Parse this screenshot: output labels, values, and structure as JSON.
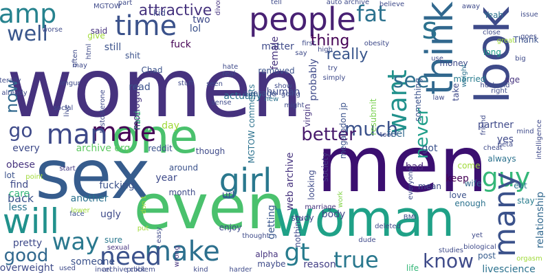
{
  "words": [
    {
      "text": "women",
      "color": "#46327e",
      "rot": 0
    },
    {
      "text": "men",
      "color": "#3b0f70",
      "rot": 0
    },
    {
      "text": "sex",
      "color": "#365c8d",
      "rot": 0
    },
    {
      "text": "even",
      "color": "#4ac16d",
      "rot": 0
    },
    {
      "text": "one",
      "color": "#4ac16d",
      "rot": 0
    },
    {
      "text": "woman",
      "color": "#1fa187",
      "rot": 0
    },
    {
      "text": "people",
      "color": "#482173",
      "rot": 0
    },
    {
      "text": "look",
      "color": "#3e4a89",
      "rot": 90
    },
    {
      "text": "think",
      "color": "#31688e",
      "rot": 90
    },
    {
      "text": "amp",
      "color": "#26828e",
      "rot": 0
    },
    {
      "text": "time",
      "color": "#3b528b",
      "rot": 0
    },
    {
      "text": "fat",
      "color": "#2c728e",
      "rot": 0
    },
    {
      "text": "s",
      "color": "#2c728e",
      "rot": 0
    },
    {
      "text": "will",
      "color": "#21918c",
      "rot": 0
    },
    {
      "text": "make",
      "color": "#2d708e",
      "rot": 0
    },
    {
      "text": "need",
      "color": "#3b528b",
      "rot": 0
    },
    {
      "text": "way",
      "color": "#2a788e",
      "rot": 0
    },
    {
      "text": "good",
      "color": "#31688e",
      "rot": 0
    },
    {
      "text": "guy",
      "color": "#35b779",
      "rot": 0
    },
    {
      "text": "girl",
      "color": "#2a788e",
      "rot": 0
    },
    {
      "text": "male",
      "color": "#440154",
      "rot": 0
    },
    {
      "text": "man",
      "color": "#3e4989",
      "rot": 0
    },
    {
      "text": "go",
      "color": "#3e4a89",
      "rot": 0
    },
    {
      "text": "well",
      "color": "#39568c",
      "rot": 0
    },
    {
      "text": "now",
      "color": "#31688e",
      "rot": 90
    },
    {
      "text": "want",
      "color": "#21918c",
      "rot": 90
    },
    {
      "text": "much",
      "color": "#3b528b",
      "rot": 0
    },
    {
      "text": "better",
      "color": "#481a6c",
      "rot": 0
    },
    {
      "text": "true",
      "color": "#2a788e",
      "rot": 0
    },
    {
      "text": "know",
      "color": "#3e4a89",
      "rot": 0
    },
    {
      "text": "gt",
      "color": "#287c8e",
      "rot": 0
    },
    {
      "text": "many",
      "color": "#3b528b",
      "rot": 90
    },
    {
      "text": "see",
      "color": "#2e6f8e",
      "rot": 0
    },
    {
      "text": "really",
      "color": "#39568c",
      "rot": 0
    },
    {
      "text": "thing",
      "color": "#440154",
      "rot": 0
    },
    {
      "text": "attractive",
      "color": "#46337e",
      "rot": 0
    },
    {
      "text": "never",
      "color": "#1f9e89",
      "rot": 90
    },
    {
      "text": "feel",
      "color": "#31688e",
      "rot": 0
    },
    {
      "text": "relationship",
      "color": "#31688e",
      "rot": 90
    },
    {
      "text": "livescience",
      "color": "#2c728e",
      "rot": 0
    },
    {
      "text": "post",
      "color": "#365c8d",
      "rot": 0
    },
    {
      "text": "life",
      "color": "#35b779",
      "rot": 0
    },
    {
      "text": "reason",
      "color": "#433e85",
      "rot": 0
    },
    {
      "text": "alpha",
      "color": "#46337e",
      "rot": 0
    },
    {
      "text": "maybe",
      "color": "#3e4a89",
      "rot": 0
    },
    {
      "text": "someone",
      "color": "#3b528b",
      "rot": 0
    },
    {
      "text": "pretty",
      "color": "#3e4a89",
      "rot": 0
    },
    {
      "text": "less",
      "color": "#2c728e",
      "rot": 0
    },
    {
      "text": "back",
      "color": "#3b528b",
      "rot": 0
    },
    {
      "text": "find",
      "color": "#3e4a89",
      "rot": 0
    },
    {
      "text": "care",
      "color": "#35b779",
      "rot": 0
    },
    {
      "text": "lot",
      "color": "#3b528b",
      "rot": 0
    },
    {
      "text": "obese",
      "color": "#46337e",
      "rot": 0
    },
    {
      "text": "start",
      "color": "#443983",
      "rot": 0
    },
    {
      "text": "every",
      "color": "#3e4a89",
      "rot": 0
    },
    {
      "text": "archive org",
      "color": "#5ec962",
      "rot": 0
    },
    {
      "text": "reddit",
      "color": "#3b528b",
      "rot": 0
    },
    {
      "text": "though",
      "color": "#3e4a89",
      "rot": 0
    },
    {
      "text": "got",
      "color": "#3b528b",
      "rot": 0
    },
    {
      "text": "bad",
      "color": "#482878",
      "rot": 0
    },
    {
      "text": "keep",
      "color": "#440154",
      "rot": 0
    },
    {
      "text": "mean",
      "color": "#3e4989",
      "rot": 0
    },
    {
      "text": "wife",
      "color": "#31688e",
      "rot": 0
    },
    {
      "text": "love",
      "color": "#3b528b",
      "rot": 0
    },
    {
      "text": "enough",
      "color": "#2c728e",
      "rot": 0
    },
    {
      "text": "come",
      "color": "#a0da39",
      "rot": 0
    },
    {
      "text": "eat",
      "color": "#2a788e",
      "rot": 0
    },
    {
      "text": "stay",
      "color": "#287c8e",
      "rot": 0
    },
    {
      "text": "always",
      "color": "#2c728e",
      "rot": 0
    },
    {
      "text": "yes",
      "color": "#3e4989",
      "rot": 0
    },
    {
      "text": "partner",
      "color": "#3e4989",
      "rot": 0
    },
    {
      "text": "long",
      "color": "#1f9e89",
      "rot": 0
    },
    {
      "text": "married",
      "color": "#287c8e",
      "rot": 0
    },
    {
      "text": "money",
      "color": "#3e4a89",
      "rot": 0
    },
    {
      "text": "Yeah",
      "color": "#2c728e",
      "rot": 0
    },
    {
      "text": "Thank",
      "color": "#3b528b",
      "rot": 0
    },
    {
      "text": "age",
      "color": "#46337e",
      "rot": 0
    },
    {
      "text": "away",
      "color": "#3e4a89",
      "rot": 0
    },
    {
      "text": "sure",
      "color": "#2a788e",
      "rot": 0
    },
    {
      "text": "sexual",
      "color": "#46337e",
      "rot": 0
    },
    {
      "text": "wrong",
      "color": "#46337e",
      "rot": 90
    },
    {
      "text": "easy",
      "color": "#3e4989",
      "rot": 90
    },
    {
      "text": "enjoy",
      "color": "#3e4a89",
      "rot": 0
    },
    {
      "text": "thought",
      "color": "#3e4a89",
      "rot": 0
    },
    {
      "text": "getting",
      "color": "#39568c",
      "rot": 90
    },
    {
      "text": "nothing",
      "color": "#3e4989",
      "rot": 90
    },
    {
      "text": "study",
      "color": "#3e4a89",
      "rot": 0
    },
    {
      "text": "body",
      "color": "#3e4a89",
      "rot": 0
    },
    {
      "text": "url",
      "color": "#3b528b",
      "rot": 0
    },
    {
      "text": "marriage",
      "color": "#46337e",
      "rot": 0
    },
    {
      "text": "society",
      "color": "#443983",
      "rot": 90
    },
    {
      "text": "work",
      "color": "#84d44b",
      "rot": 90
    },
    {
      "text": "web archive",
      "color": "#46337e",
      "rot": 90
    },
    {
      "text": "looking",
      "color": "#3e4a89",
      "rot": 90
    },
    {
      "text": "virgin",
      "color": "#46337e",
      "rot": 90
    },
    {
      "text": "megalodon jp",
      "color": "#3b528b",
      "rot": 90
    },
    {
      "text": "resubmit",
      "color": "#7ad151",
      "rot": 90
    },
    {
      "text": "something",
      "color": "#3b528b",
      "rot": 90
    },
    {
      "text": "take",
      "color": "#3e4989",
      "rot": 90
    },
    {
      "text": "weight",
      "color": "#2c728e",
      "rot": 90
    },
    {
      "text": "intelligence",
      "color": "#3e4989",
      "rot": 90
    },
    {
      "text": "MGTOW comments",
      "color": "#2c728e",
      "rot": 90
    },
    {
      "text": "month",
      "color": "#3e4a89",
      "rot": 0
    },
    {
      "text": "year",
      "color": "#3e4a89",
      "rot": 0
    },
    {
      "text": "fucking",
      "color": "#3b528b",
      "rot": 0
    },
    {
      "text": "around",
      "color": "#3b528b",
      "rot": 0
    },
    {
      "text": "another",
      "color": "#2c728e",
      "rot": 0
    },
    {
      "text": "ugly",
      "color": "#3e4a89",
      "rot": 0
    },
    {
      "text": "face",
      "color": "#3b528b",
      "rot": 0
    },
    {
      "text": "day",
      "color": "#a0da39",
      "rot": 0
    },
    {
      "text": "hard",
      "color": "#35b779",
      "rot": 90
    },
    {
      "text": "monogamy",
      "color": "#46337e",
      "rot": 90
    },
    {
      "text": "read",
      "color": "#3b528b",
      "rot": 0
    },
    {
      "text": "Chad",
      "color": "#3b528b",
      "rot": 0
    },
    {
      "text": "fuck",
      "color": "#440154",
      "rot": 0
    },
    {
      "text": "lol",
      "color": "#3b528b",
      "rot": 0
    },
    {
      "text": "still",
      "color": "#3b528b",
      "rot": 0
    },
    {
      "text": "matter",
      "color": "#3e4a89",
      "rot": 0
    },
    {
      "text": "removed",
      "color": "#3b528b",
      "rot": 0
    },
    {
      "text": "human",
      "color": "#3e4a89",
      "rot": 0
    },
    {
      "text": "actually",
      "color": "#2c728e",
      "rot": 0
    },
    {
      "text": "new",
      "color": "#2c728e",
      "rot": 0
    },
    {
      "text": "average",
      "color": "#3b528b",
      "rot": 0
    },
    {
      "text": "probably",
      "color": "#3e4a89",
      "rot": 90
    },
    {
      "text": "female",
      "color": "#46337e",
      "rot": 90
    },
    {
      "text": "shit",
      "color": "#3b528b",
      "rot": 0
    },
    {
      "text": "two",
      "color": "#3e4a89",
      "rot": 0
    },
    {
      "text": "MGTOW",
      "color": "#3e4989",
      "rot": 0
    },
    {
      "text": "give",
      "color": "#a0da39",
      "rot": 0
    },
    {
      "text": "worse",
      "color": "#3e4a89",
      "rot": 0
    },
    {
      "text": "said",
      "color": "#46337e",
      "rot": 0
    },
    {
      "text": "kid",
      "color": "#3e4a89",
      "rot": 0
    },
    {
      "text": "part",
      "color": "#3e4a89",
      "rot": 0
    },
    {
      "text": "divorce",
      "color": "#46337e",
      "rot": 90
    },
    {
      "text": "tell",
      "color": "#3e4a89",
      "rot": 0
    },
    {
      "text": "auto archive",
      "color": "#3e4a89",
      "rot": 0
    },
    {
      "text": "believe",
      "color": "#3e4a89",
      "rot": 0
    },
    {
      "text": "use",
      "color": "#3e4a89",
      "rot": 0
    },
    {
      "text": "close",
      "color": "#3e4a89",
      "rot": 0
    },
    {
      "text": "issue",
      "color": "#3e4a89",
      "rot": 0
    },
    {
      "text": "goes",
      "color": "#3e4a89",
      "rot": 0
    },
    {
      "text": "big",
      "color": "#3e4a89",
      "rot": 0
    },
    {
      "text": "great",
      "color": "#a0da39",
      "rot": 0
    },
    {
      "text": "husband",
      "color": "#3e4a89",
      "rot": 0
    },
    {
      "text": "right",
      "color": "#3e4a89",
      "rot": 0
    },
    {
      "text": "law",
      "color": "#3e4a89",
      "rot": 0
    },
    {
      "text": "friend",
      "color": "#3e4a89",
      "rot": 90
    },
    {
      "text": "mind",
      "color": "#3e4a89",
      "rot": 0
    },
    {
      "text": "tool",
      "color": "#3e4a89",
      "rot": 0
    },
    {
      "text": "beta",
      "color": "#3e4a89",
      "rot": 0
    },
    {
      "text": "cheat",
      "color": "#3e4a89",
      "rot": 0
    },
    {
      "text": "orgasm",
      "color": "#a0da39",
      "rot": 0
    },
    {
      "text": "biological",
      "color": "#3e4a89",
      "rot": 0
    },
    {
      "text": "yet",
      "color": "#3e4a89",
      "rot": 0
    },
    {
      "text": "studies",
      "color": "#3e4a89",
      "rot": 0
    },
    {
      "text": "everyone",
      "color": "#3e4a89",
      "rot": 90
    },
    {
      "text": "BMI",
      "color": "#3e4a89",
      "rot": 0
    },
    {
      "text": "deleted",
      "color": "#3e4a89",
      "rot": 0
    },
    {
      "text": "dude",
      "color": "#3e4a89",
      "rot": 0
    },
    {
      "text": "put",
      "color": "#a0da39",
      "rot": 0
    },
    {
      "text": "lower",
      "color": "#a0da39",
      "rot": 0
    },
    {
      "text": "don t",
      "color": "#a0da39",
      "rot": 90
    },
    {
      "text": "point",
      "color": "#a0da39",
      "rot": 0
    },
    {
      "text": "overweight",
      "color": "#3e4a89",
      "rot": 0
    },
    {
      "text": "used",
      "color": "#3e4a89",
      "rot": 0
    },
    {
      "text": "incel",
      "color": "#3e4a89",
      "rot": 0
    },
    {
      "text": "archive click",
      "color": "#3e4a89",
      "rot": 0
    },
    {
      "text": "problem",
      "color": "#3e4a89",
      "rot": 0
    },
    {
      "text": "kind",
      "color": "#3e4a89",
      "rot": 0
    },
    {
      "text": "harder",
      "color": "#3e4a89",
      "rot": 0
    },
    {
      "text": "already",
      "color": "#3e4a89",
      "rot": 0
    },
    {
      "text": "literally",
      "color": "#3e4a89",
      "rot": 0
    },
    {
      "text": "social",
      "color": "#3e4a89",
      "rot": 0
    },
    {
      "text": "imgur",
      "color": "#3e4a89",
      "rot": 0
    },
    {
      "text": "html",
      "color": "#3e4a89",
      "rot": 90
    },
    {
      "text": "often",
      "color": "#3e4a89",
      "rot": 90
    },
    {
      "text": "may",
      "color": "#3e4a89",
      "rot": 0
    },
    {
      "text": "stuff",
      "color": "#3e4a89",
      "rot": 0
    },
    {
      "text": "testosterone",
      "color": "#3e4a89",
      "rot": 90
    },
    {
      "text": "live",
      "color": "#3e4a89",
      "rot": 90
    },
    {
      "text": "say",
      "color": "#3e4a89",
      "rot": 0
    },
    {
      "text": "obesity",
      "color": "#3e4a89",
      "rot": 0
    },
    {
      "text": "first",
      "color": "#3e4a89",
      "rot": 0
    },
    {
      "text": "high",
      "color": "#3e4a89",
      "rot": 0
    },
    {
      "text": "try",
      "color": "#3e4a89",
      "rot": 0
    },
    {
      "text": "simply",
      "color": "#3e4a89",
      "rot": 0
    },
    {
      "text": "hate",
      "color": "#3e4a89",
      "rot": 0
    },
    {
      "text": "real",
      "color": "#3e4a89",
      "rot": 0
    },
    {
      "text": "seen",
      "color": "#3e4a89",
      "rot": 0
    },
    {
      "text": "show",
      "color": "#3e4a89",
      "rot": 0
    },
    {
      "text": "going",
      "color": "#3e4a89",
      "rot": 0
    },
    {
      "text": "might",
      "color": "#3e4a89",
      "rot": 0
    },
    {
      "text": "sense",
      "color": "#3e4a89",
      "rot": 0
    },
    {
      "text": "fact",
      "color": "#3e4a89",
      "rot": 0
    },
    {
      "text": "sub",
      "color": "#a0da39",
      "rot": 90
    }
  ]
}
